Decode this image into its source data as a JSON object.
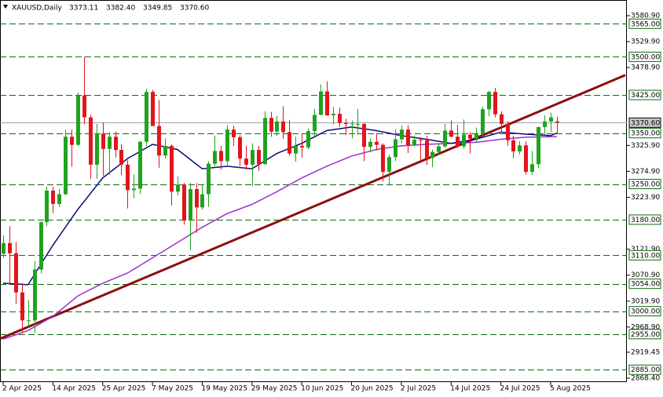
{
  "chart_data": {
    "type": "candlestick",
    "title": "XAUUSD,Daily",
    "header_values": [
      "3373.11",
      "3382.40",
      "3349.85",
      "3370.60"
    ],
    "up_color": "#1fa31f",
    "down_color": "#e3141c",
    "categories": [
      "2 Apr 2025",
      null,
      null,
      null,
      null,
      null,
      null,
      null,
      "14 Apr 2025",
      null,
      null,
      null,
      null,
      null,
      null,
      null,
      "25 Apr 2025",
      null,
      null,
      null,
      null,
      null,
      null,
      null,
      "7 May 2025",
      null,
      null,
      null,
      null,
      null,
      null,
      null,
      "19 May 2025",
      null,
      null,
      null,
      null,
      null,
      null,
      null,
      "29 May 2025",
      null,
      null,
      null,
      null,
      null,
      null,
      null,
      "10 Jun 2025",
      null,
      null,
      null,
      null,
      null,
      null,
      null,
      "20 Jun 2025",
      null,
      null,
      null,
      null,
      null,
      null,
      null,
      "2 Jul 2025",
      null,
      null,
      null,
      null,
      null,
      null,
      null,
      "14 Jul 2025",
      null,
      null,
      null,
      null,
      null,
      null,
      null,
      "24 Jul 2025",
      null,
      null,
      null,
      null,
      null,
      null,
      null,
      "5 Aug 2025",
      null
    ],
    "open": [
      3113,
      3134,
      3114,
      3037,
      2982,
      2982,
      3082,
      3175,
      3237,
      3211,
      3230,
      3343,
      3327,
      3424,
      3381,
      3288,
      3349,
      3319,
      3343,
      3317,
      3288,
      3238,
      3241,
      3333,
      3431,
      3364,
      3306,
      3325,
      3235,
      3249,
      3178,
      3240,
      3204,
      3230,
      3290,
      3315,
      3295,
      3357,
      3342,
      3300,
      3288,
      3317,
      3289,
      3380,
      3353,
      3373,
      3352,
      3310,
      3325,
      3322,
      3354,
      3386,
      3432,
      3385,
      3388,
      3370,
      3368,
      3368,
      3368,
      3323,
      3333,
      3327,
      3274,
      3303,
      3338,
      3357,
      3326,
      3337,
      3336,
      3301,
      3313,
      3324,
      3355,
      3343,
      3324,
      3347,
      3339,
      3350,
      3397,
      3431,
      3387,
      3368,
      3336,
      3314,
      3326,
      3274,
      3289,
      3362,
      3373,
      3373.11
    ],
    "high": [
      3149,
      3167,
      3136,
      3055,
      3022,
      3099,
      3176,
      3245,
      3245,
      3240,
      3357,
      3357,
      3430,
      3500,
      3386,
      3368,
      3371,
      3352,
      3353,
      3328,
      3297,
      3269,
      3335,
      3437,
      3435,
      3415,
      3340,
      3328,
      3265,
      3252,
      3252,
      3252,
      3250,
      3295,
      3345,
      3325,
      3366,
      3365,
      3346,
      3325,
      3330,
      3325,
      3393,
      3392,
      3384,
      3403,
      3376,
      3343,
      3350,
      3359,
      3398,
      3446,
      3452,
      3402,
      3400,
      3378,
      3375,
      3398,
      3370,
      3340,
      3350,
      3330,
      3308,
      3358,
      3365,
      3366,
      3345,
      3342,
      3345,
      3318,
      3330,
      3368,
      3375,
      3366,
      3377,
      3352,
      3361,
      3402,
      3433,
      3439,
      3393,
      3373,
      3345,
      3334,
      3334,
      3315,
      3363,
      3385,
      3390,
      3382.4
    ],
    "low": [
      3105,
      3054,
      3015,
      2957,
      2970,
      2957,
      3074,
      3167,
      3193,
      3205,
      3228,
      3284,
      3325,
      3367,
      3260,
      3260,
      3266,
      3268,
      3302,
      3268,
      3202,
      3222,
      3230,
      3325,
      3365,
      3282,
      3300,
      3208,
      3228,
      3170,
      3120,
      3154,
      3200,
      3205,
      3285,
      3278,
      3287,
      3325,
      3285,
      3278,
      3246,
      3276,
      3288,
      3343,
      3344,
      3339,
      3306,
      3294,
      3302,
      3318,
      3344,
      3385,
      3384,
      3367,
      3362,
      3346,
      3340,
      3347,
      3295,
      3312,
      3316,
      3255,
      3247,
      3295,
      3330,
      3311,
      3324,
      3296,
      3287,
      3283,
      3308,
      3321,
      3342,
      3321,
      3319,
      3310,
      3332,
      3345,
      3383,
      3381,
      3351,
      3325,
      3301,
      3308,
      3268,
      3268,
      3281,
      3347,
      3352,
      3349.85
    ],
    "close": [
      3134,
      3114,
      3037,
      2982,
      2982,
      3082,
      3175,
      3237,
      3211,
      3230,
      3343,
      3327,
      3424,
      3381,
      3288,
      3349,
      3319,
      3343,
      3317,
      3288,
      3238,
      3241,
      3333,
      3431,
      3364,
      3306,
      3325,
      3235,
      3249,
      3178,
      3240,
      3204,
      3230,
      3290,
      3315,
      3295,
      3357,
      3342,
      3300,
      3288,
      3317,
      3289,
      3380,
      3353,
      3373,
      3352,
      3310,
      3325,
      3322,
      3354,
      3386,
      3432,
      3385,
      3388,
      3370,
      3368,
      3369,
      3368,
      3323,
      3333,
      3327,
      3274,
      3303,
      3338,
      3357,
      3326,
      3337,
      3336,
      3301,
      3313,
      3324,
      3355,
      3343,
      3324,
      3347,
      3339,
      3350,
      3397,
      3431,
      3387,
      3368,
      3336,
      3314,
      3326,
      3274,
      3289,
      3362,
      3373,
      3381,
      3370.6
    ],
    "series": [
      {
        "color": "#9b30d0",
        "x": [
          0,
          4,
          8,
          12,
          16,
          20,
          24,
          28,
          32,
          36,
          40,
          44,
          48,
          52,
          56,
          60,
          64,
          68,
          72,
          76,
          80,
          84,
          88,
          89
        ],
        "values": [
          2945,
          2962,
          2990,
          3030,
          3055,
          3075,
          3105,
          3135,
          3165,
          3192,
          3210,
          3235,
          3262,
          3285,
          3305,
          3318,
          3325,
          3328,
          3330,
          3332,
          3338,
          3342,
          3343,
          3343
        ]
      },
      {
        "color": "#0a0a78",
        "x": [
          0,
          4,
          8,
          12,
          16,
          20,
          24,
          28,
          32,
          36,
          40,
          44,
          48,
          52,
          56,
          60,
          64,
          68,
          72,
          76,
          80,
          84,
          88,
          89
        ],
        "values": [
          3055,
          3052,
          3130,
          3200,
          3262,
          3300,
          3328,
          3318,
          3280,
          3285,
          3280,
          3310,
          3330,
          3355,
          3362,
          3355,
          3345,
          3338,
          3330,
          3338,
          3352,
          3348,
          3345,
          3350
        ]
      }
    ],
    "trendline": {
      "color": "#8b0f0f",
      "x": [
        -0.5,
        100
      ],
      "values": [
        2946,
        3464
      ]
    },
    "levels": [
      {
        "value": 3565,
        "label": "3565.00"
      },
      {
        "value": 3500,
        "label": "3500.00"
      },
      {
        "value": 3425,
        "label": "3425.00"
      },
      {
        "value": 3350,
        "label": "3350.00"
      },
      {
        "value": 3250,
        "label": "3250.00"
      },
      {
        "value": 3180,
        "label": "3180.00"
      },
      {
        "value": 3110,
        "label": "3110.00"
      },
      {
        "value": 3054,
        "label": "3054.00"
      },
      {
        "value": 3000,
        "label": "3000.00"
      },
      {
        "value": 2955,
        "label": "2955.00"
      },
      {
        "value": 2885,
        "label": "2885.00"
      }
    ],
    "level_color": "#0b6b0b",
    "price_label": {
      "value": 3370.6,
      "label": "3370.60"
    },
    "ylim": [
      2860.7,
      3611.7
    ],
    "yticks": [
      {
        "value": 3580.9,
        "label": "3580.90"
      },
      {
        "value": 3529.9,
        "label": "3529.90"
      },
      {
        "value": 3478.9,
        "label": "3478.90"
      },
      {
        "value": 3325.9,
        "label": "3325.90"
      },
      {
        "value": 3274.9,
        "label": "3274.90"
      },
      {
        "value": 3223.9,
        "label": "3223.90"
      },
      {
        "value": 3121.9,
        "label": "3121.90"
      },
      {
        "value": 3070.9,
        "label": "3070.90"
      },
      {
        "value": 3019.9,
        "label": "3019.90"
      },
      {
        "value": 2968.9,
        "label": "2968.90"
      },
      {
        "value": 2919.45,
        "label": "2919.45"
      },
      {
        "value": 2868.4,
        "label": "2868.40"
      }
    ]
  }
}
